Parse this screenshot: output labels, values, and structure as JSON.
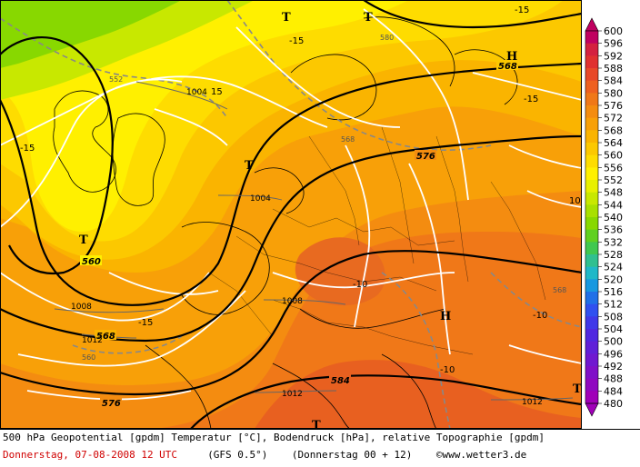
{
  "title": "500 hPa Geopotential [gpdm] Temperatur [°C], Bodendruck [hPa], relative Topographie [gpdm]",
  "footer": {
    "date_time": "Donnerstag, 07-08-2008  12 UTC",
    "model": "(GFS 0.5°)",
    "run": "(Donnerstag 00 + 12)",
    "copyright": "©www.wetter3.de"
  },
  "legend": {
    "ticks": [
      "600",
      "596",
      "592",
      "588",
      "584",
      "580",
      "576",
      "572",
      "568",
      "564",
      "560",
      "556",
      "552",
      "548",
      "544",
      "540",
      "536",
      "532",
      "528",
      "524",
      "520",
      "516",
      "512",
      "508",
      "504",
      "500",
      "496",
      "492",
      "488",
      "484",
      "480"
    ],
    "colors": [
      "#c00060",
      "#d42040",
      "#e03030",
      "#e84828",
      "#ee6020",
      "#f07818",
      "#f48c10",
      "#f8a008",
      "#fab400",
      "#fcc800",
      "#fedc00",
      "#fff000",
      "#e8f000",
      "#c8e800",
      "#a8e000",
      "#88d800",
      "#60d020",
      "#40c850",
      "#30c090",
      "#20b8c8",
      "#1898e0",
      "#2070e8",
      "#3050f0",
      "#4038e8",
      "#5028e0",
      "#6020d8",
      "#7018d0",
      "#8010c8",
      "#9008c0",
      "#a000b8"
    ]
  },
  "map": {
    "pressure_systems": [
      {
        "id": "t1",
        "letter": "T"
      },
      {
        "id": "t2",
        "letter": "T"
      },
      {
        "id": "t3",
        "letter": "T"
      },
      {
        "id": "t4",
        "letter": "T"
      },
      {
        "id": "t5",
        "letter": "T"
      },
      {
        "id": "h1",
        "letter": "H"
      },
      {
        "id": "h2",
        "letter": "H"
      },
      {
        "id": "t6",
        "letter": "T"
      }
    ],
    "geopotential_labels": [
      {
        "id": "g568a",
        "text": "568"
      },
      {
        "id": "g560",
        "text": "560"
      },
      {
        "id": "g568b",
        "text": "568"
      },
      {
        "id": "g576a",
        "text": "576"
      },
      {
        "id": "g576b",
        "text": "576"
      },
      {
        "id": "g584",
        "text": "584"
      }
    ],
    "pressure_labels": [
      {
        "id": "p1004a",
        "text": "1004"
      },
      {
        "id": "p1004b",
        "text": "1004"
      },
      {
        "id": "p1008a",
        "text": "1008"
      },
      {
        "id": "p1008b",
        "text": "1008"
      },
      {
        "id": "p1012a",
        "text": "1012"
      },
      {
        "id": "p1012b",
        "text": "1012"
      },
      {
        "id": "p1012c",
        "text": "1012"
      }
    ],
    "topography_labels": [
      {
        "id": "r552",
        "text": "552"
      },
      {
        "id": "r580",
        "text": "580"
      },
      {
        "id": "r568",
        "text": "568"
      },
      {
        "id": "r560",
        "text": "560"
      },
      {
        "id": "r568c",
        "text": "568"
      }
    ],
    "temperature_labels": [
      {
        "id": "tm15a",
        "text": "-15"
      },
      {
        "id": "tm15b",
        "text": "-15"
      },
      {
        "id": "tm15c",
        "text": "-15"
      },
      {
        "id": "tm15d",
        "text": "-15"
      },
      {
        "id": "tm15e",
        "text": "-15"
      },
      {
        "id": "tm10a",
        "text": "-10"
      },
      {
        "id": "tm10b",
        "text": "-10"
      },
      {
        "id": "tm10c",
        "text": "-10"
      },
      {
        "id": "tm10d",
        "text": "10"
      },
      {
        "id": "tm15f",
        "text": "15"
      }
    ]
  }
}
